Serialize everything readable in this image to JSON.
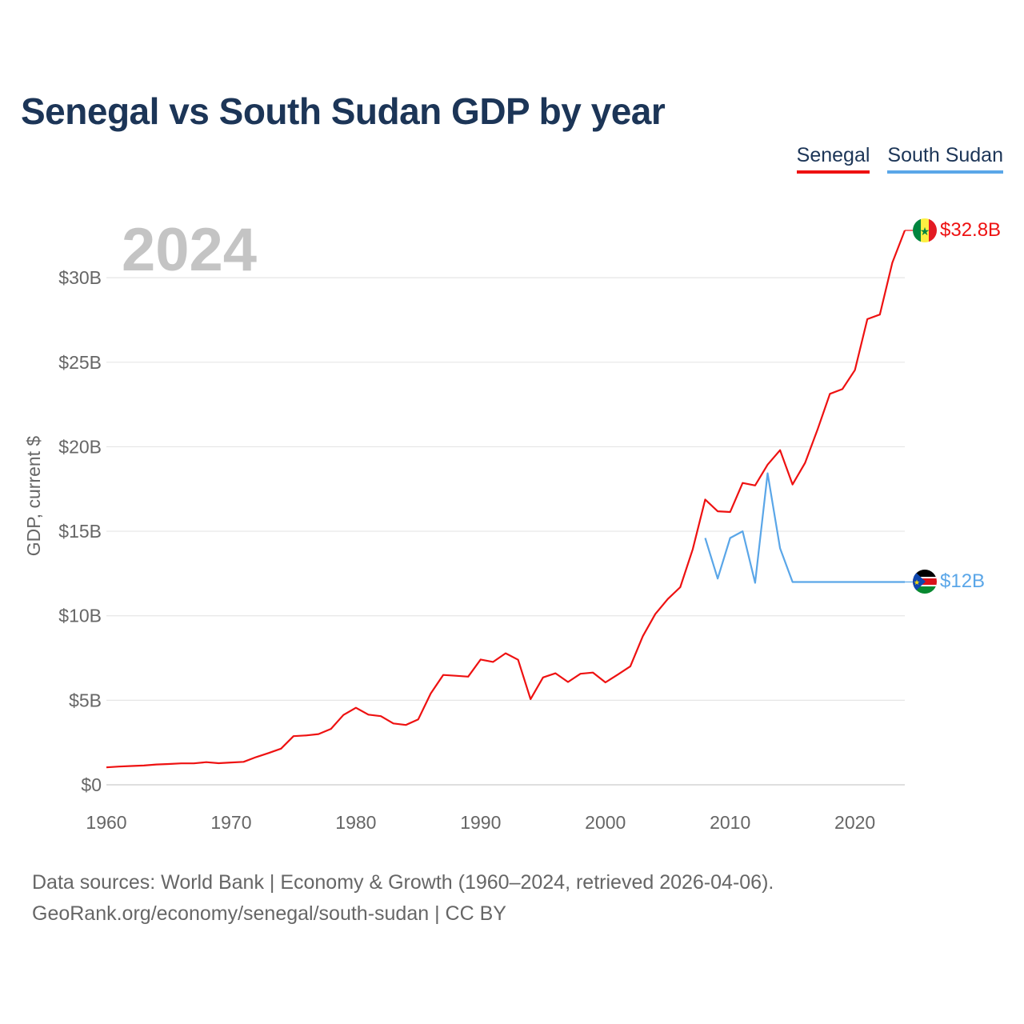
{
  "title": "Senegal vs South Sudan GDP by year",
  "legend": [
    {
      "label": "Senegal",
      "color": "#ee1111"
    },
    {
      "label": "South Sudan",
      "color": "#5aa6e8"
    }
  ],
  "year_label": "2024",
  "footer": {
    "line1": "Data sources: World Bank | Economy & Growth (1960–2024, retrieved 2026-04-06).",
    "line2": "GeoRank.org/economy/senegal/south-sudan | CC BY"
  },
  "chart_data": {
    "type": "line",
    "title": "Senegal vs South Sudan GDP by year",
    "xlabel": "",
    "ylabel": "GDP, current $",
    "xlim": [
      1960,
      2024
    ],
    "ylim": [
      0,
      32.8
    ],
    "x_ticks": [
      1960,
      1970,
      1980,
      1990,
      2000,
      2010,
      2020
    ],
    "y_ticks": [
      0,
      5,
      10,
      15,
      20,
      25,
      30
    ],
    "y_tick_labels": [
      "$0",
      "$5B",
      "$10B",
      "$15B",
      "$20B",
      "$25B",
      "$30B"
    ],
    "grid": true,
    "series": [
      {
        "name": "Senegal",
        "color": "#ee1111",
        "end_label": "$32.8B",
        "x": [
          1960,
          1961,
          1962,
          1963,
          1964,
          1965,
          1966,
          1967,
          1968,
          1969,
          1970,
          1971,
          1972,
          1973,
          1974,
          1975,
          1976,
          1977,
          1978,
          1979,
          1980,
          1981,
          1982,
          1983,
          1984,
          1985,
          1986,
          1987,
          1988,
          1989,
          1990,
          1991,
          1992,
          1993,
          1994,
          1995,
          1996,
          1997,
          1998,
          1999,
          2000,
          2001,
          2002,
          2003,
          2004,
          2005,
          2006,
          2007,
          2008,
          2009,
          2010,
          2011,
          2012,
          2013,
          2014,
          2015,
          2016,
          2017,
          2018,
          2019,
          2020,
          2021,
          2022,
          2023,
          2024
        ],
        "values": [
          1.03,
          1.08,
          1.11,
          1.14,
          1.2,
          1.23,
          1.27,
          1.27,
          1.34,
          1.28,
          1.32,
          1.36,
          1.64,
          1.88,
          2.14,
          2.88,
          2.92,
          3.0,
          3.31,
          4.13,
          4.56,
          4.15,
          4.06,
          3.63,
          3.54,
          3.87,
          5.4,
          6.5,
          6.45,
          6.4,
          7.41,
          7.27,
          7.78,
          7.4,
          5.07,
          6.35,
          6.6,
          6.08,
          6.57,
          6.64,
          6.06,
          6.52,
          7.01,
          8.79,
          10.1,
          10.99,
          11.69,
          13.93,
          16.88,
          16.18,
          16.14,
          17.86,
          17.71,
          18.94,
          19.8,
          17.77,
          19.04,
          21.0,
          23.13,
          23.41,
          24.53,
          27.55,
          27.82,
          30.89,
          32.8
        ]
      },
      {
        "name": "South Sudan",
        "color": "#5aa6e8",
        "end_label": "$12B",
        "x": [
          2008,
          2009,
          2010,
          2011,
          2012,
          2013,
          2014,
          2015,
          2016,
          2017,
          2018,
          2019,
          2020,
          2021,
          2022,
          2023,
          2024
        ],
        "values": [
          14.6,
          12.2,
          14.6,
          15.0,
          11.95,
          18.43,
          13.99,
          12.0,
          12.0,
          12.0,
          12.0,
          12.0,
          12.0,
          12.0,
          12.0,
          12.0,
          12.0
        ]
      }
    ]
  }
}
